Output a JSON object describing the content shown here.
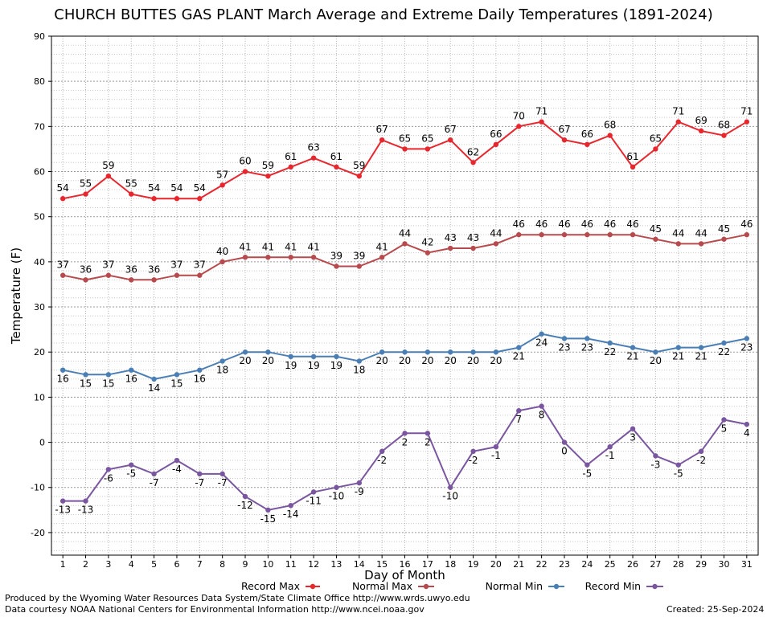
{
  "page": {
    "title": "CHURCH BUTTES GAS PLANT March Average and Extreme Daily Temperatures (1891-2024)",
    "produced_by": "Produced by the Wyoming Water Resources Data System/State Climate Office http://www.wrds.uwyo.edu",
    "data_courtesy": "Data courtesy NOAA National Centers for Environmental Information http://www.ncei.noaa.gov",
    "created": "Created:  25-Sep-2024"
  },
  "chart_data": {
    "type": "line",
    "title": "CHURCH BUTTES GAS PLANT March Average and Extreme Daily Temperatures (1891-2024)",
    "xlabel": "Day of Month",
    "ylabel": "Temperature (F)",
    "x": [
      1,
      2,
      3,
      4,
      5,
      6,
      7,
      8,
      9,
      10,
      11,
      12,
      13,
      14,
      15,
      16,
      17,
      18,
      19,
      20,
      21,
      22,
      23,
      24,
      25,
      26,
      27,
      28,
      29,
      30,
      31
    ],
    "xlim": [
      0.5,
      31.5
    ],
    "ylim": [
      -25,
      90
    ],
    "yticks": [
      -20,
      -10,
      0,
      10,
      20,
      30,
      40,
      50,
      60,
      70,
      80,
      90
    ],
    "grid": true,
    "legend_position": "bottom",
    "series": [
      {
        "name": "Record Max",
        "color": "#e8262d",
        "values": [
          54,
          55,
          59,
          55,
          54,
          54,
          54,
          57,
          60,
          59,
          61,
          63,
          61,
          59,
          67,
          65,
          65,
          67,
          62,
          66,
          70,
          71,
          67,
          66,
          68,
          61,
          65,
          71,
          69,
          68,
          71
        ]
      },
      {
        "name": "Normal Max",
        "color": "#b84a4d",
        "values": [
          37,
          36,
          37,
          36,
          36,
          37,
          37,
          40,
          41,
          41,
          41,
          41,
          39,
          39,
          41,
          44,
          42,
          43,
          43,
          44,
          46,
          46,
          46,
          46,
          46,
          46,
          45,
          44,
          44,
          45,
          46
        ]
      },
      {
        "name": "Normal Min",
        "color": "#4a7fb5",
        "values": [
          16,
          15,
          15,
          16,
          14,
          15,
          16,
          18,
          20,
          20,
          19,
          19,
          19,
          18,
          20,
          20,
          20,
          20,
          20,
          20,
          21,
          24,
          23,
          23,
          22,
          21,
          20,
          21,
          21,
          22,
          23
        ]
      },
      {
        "name": "Record Min",
        "color": "#7b56a0",
        "values": [
          -13,
          -13,
          -6,
          -5,
          -7,
          -4,
          -7,
          -7,
          -12,
          -15,
          -14,
          -11,
          -10,
          -9,
          -2,
          2,
          2,
          -10,
          -2,
          -1,
          7,
          8,
          0,
          -5,
          -1,
          3,
          -3,
          -5,
          -2,
          5,
          4
        ]
      }
    ]
  }
}
